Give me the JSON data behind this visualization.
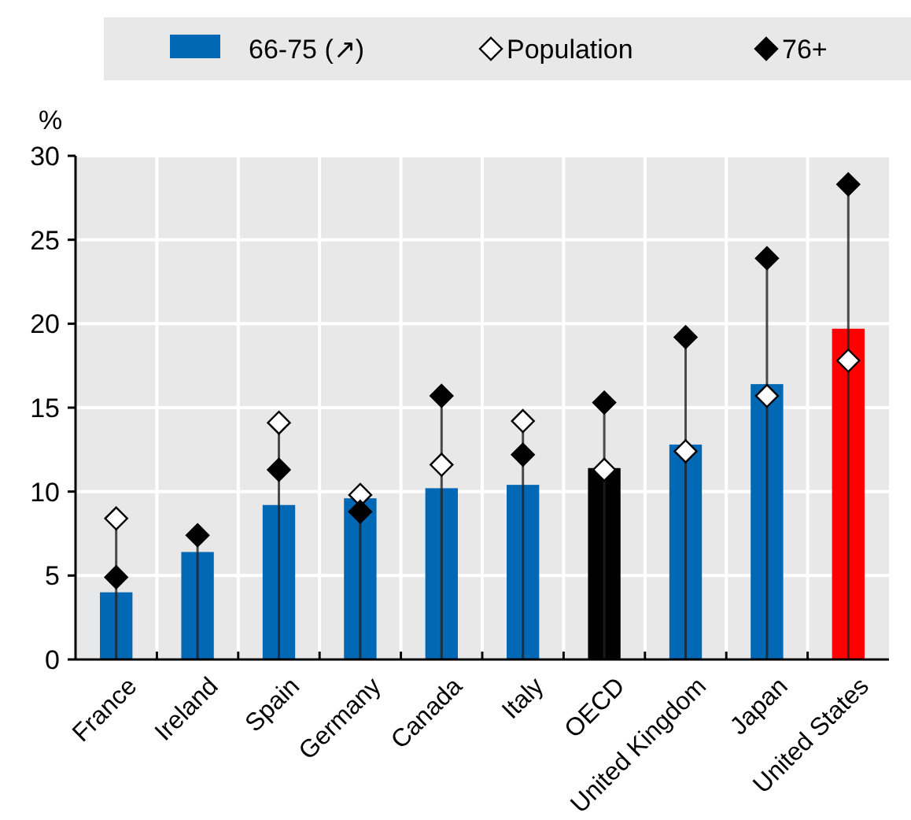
{
  "chart_data": {
    "type": "bar",
    "ylabel": "%",
    "categories": [
      "France",
      "Ireland",
      "Spain",
      "Germany",
      "Canada",
      "Italy",
      "OECD",
      "United Kingdom",
      "Japan",
      "United States"
    ],
    "series": [
      {
        "name": "66-75 (↗)",
        "color": "#0068b5",
        "colors": [
          "#0068b5",
          "#0068b5",
          "#0068b5",
          "#0068b5",
          "#0068b5",
          "#0068b5",
          "#000000",
          "#0068b5",
          "#0068b5",
          "#ff0000"
        ],
        "values": [
          4.0,
          6.4,
          9.2,
          9.6,
          10.2,
          10.4,
          11.4,
          12.8,
          16.4,
          19.7
        ]
      },
      {
        "name": "Population",
        "type": "scatter",
        "marker": "diamond",
        "color": "#ffffff",
        "x": [
          "France",
          "Ireland",
          "Spain",
          "Germany",
          "Canada",
          "Italy",
          "OECD",
          "United Kingdom",
          "Japan",
          "United States"
        ],
        "values": [
          8.4,
          null,
          14.1,
          9.8,
          11.6,
          14.2,
          11.3,
          12.4,
          15.7,
          17.8
        ]
      },
      {
        "name": "76+",
        "type": "scatter",
        "marker": "diamond",
        "color": "#000000",
        "x": [
          "France",
          "Ireland",
          "Spain",
          "Germany",
          "Canada",
          "Italy",
          "OECD",
          "United Kingdom",
          "Japan",
          "United States"
        ],
        "values": [
          4.9,
          7.4,
          11.3,
          8.8,
          15.7,
          12.2,
          15.3,
          19.2,
          23.9,
          28.3
        ]
      }
    ],
    "ylim": [
      0,
      30
    ],
    "yticks": [
      0,
      5,
      10,
      15,
      20,
      25,
      30
    ],
    "grid": true,
    "legend": "top"
  }
}
